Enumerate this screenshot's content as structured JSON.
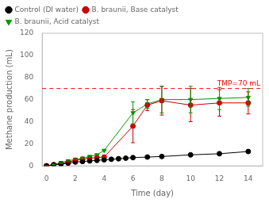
{
  "chart_data": {
    "type": "line",
    "xlabel": "Time (day)",
    "ylabel": "Methane production (mL)",
    "xlim": [
      -0.3,
      15
    ],
    "ylim": [
      0,
      120
    ],
    "xticks": [
      0,
      2,
      4,
      6,
      8,
      10,
      12,
      14
    ],
    "yticks": [
      0,
      20,
      40,
      60,
      80,
      100,
      120
    ],
    "grid": false,
    "legend": "upper left",
    "series": [
      {
        "name": "Control (DI water)",
        "color": "black",
        "marker": "o",
        "line_style": "solid",
        "x": [
          0,
          0.5,
          1,
          1.5,
          2,
          2.5,
          3,
          3.5,
          4,
          4.5,
          5,
          5.5,
          6,
          7,
          8,
          10,
          12,
          14
        ],
        "values": [
          0,
          1,
          1.5,
          2.5,
          3.5,
          4,
          4.5,
          5,
          5.5,
          6,
          6.5,
          7,
          7.5,
          8,
          8.5,
          10,
          11,
          13
        ]
      },
      {
        "name": "B. braunii, Base catalyst",
        "color": "#cc0000",
        "marker": "o",
        "line_style": "solid",
        "x": [
          0,
          0.5,
          1,
          1.5,
          2,
          2.5,
          3,
          3.5,
          4,
          6,
          7,
          8,
          10,
          12,
          14
        ],
        "values": [
          0,
          1,
          2,
          3.5,
          5,
          6,
          7,
          7.5,
          8,
          36,
          55,
          59,
          55,
          57,
          57
        ],
        "errors": [
          0,
          0,
          0,
          0,
          0,
          0,
          0,
          0,
          0,
          15,
          5,
          13,
          15,
          12,
          10
        ]
      },
      {
        "name": "B. braunii, Acid catalyst",
        "color": "#009900",
        "marker": "v",
        "line_style": "solid",
        "x": [
          0,
          0.5,
          1,
          1.5,
          2,
          2.5,
          3,
          3.5,
          4,
          6,
          7,
          8,
          10,
          12,
          14
        ],
        "values": [
          0,
          1.5,
          3,
          4.5,
          6,
          7,
          8.5,
          10,
          14,
          48,
          56,
          60,
          60,
          61,
          62
        ],
        "errors": [
          0,
          0,
          0,
          0,
          0,
          0,
          0,
          0,
          0,
          10,
          4,
          12,
          12,
          10,
          8
        ]
      }
    ],
    "annotations": [
      {
        "type": "hline",
        "y": 70,
        "text": "TMP=70 mL",
        "color": "red",
        "line_style": "dashed"
      }
    ]
  }
}
